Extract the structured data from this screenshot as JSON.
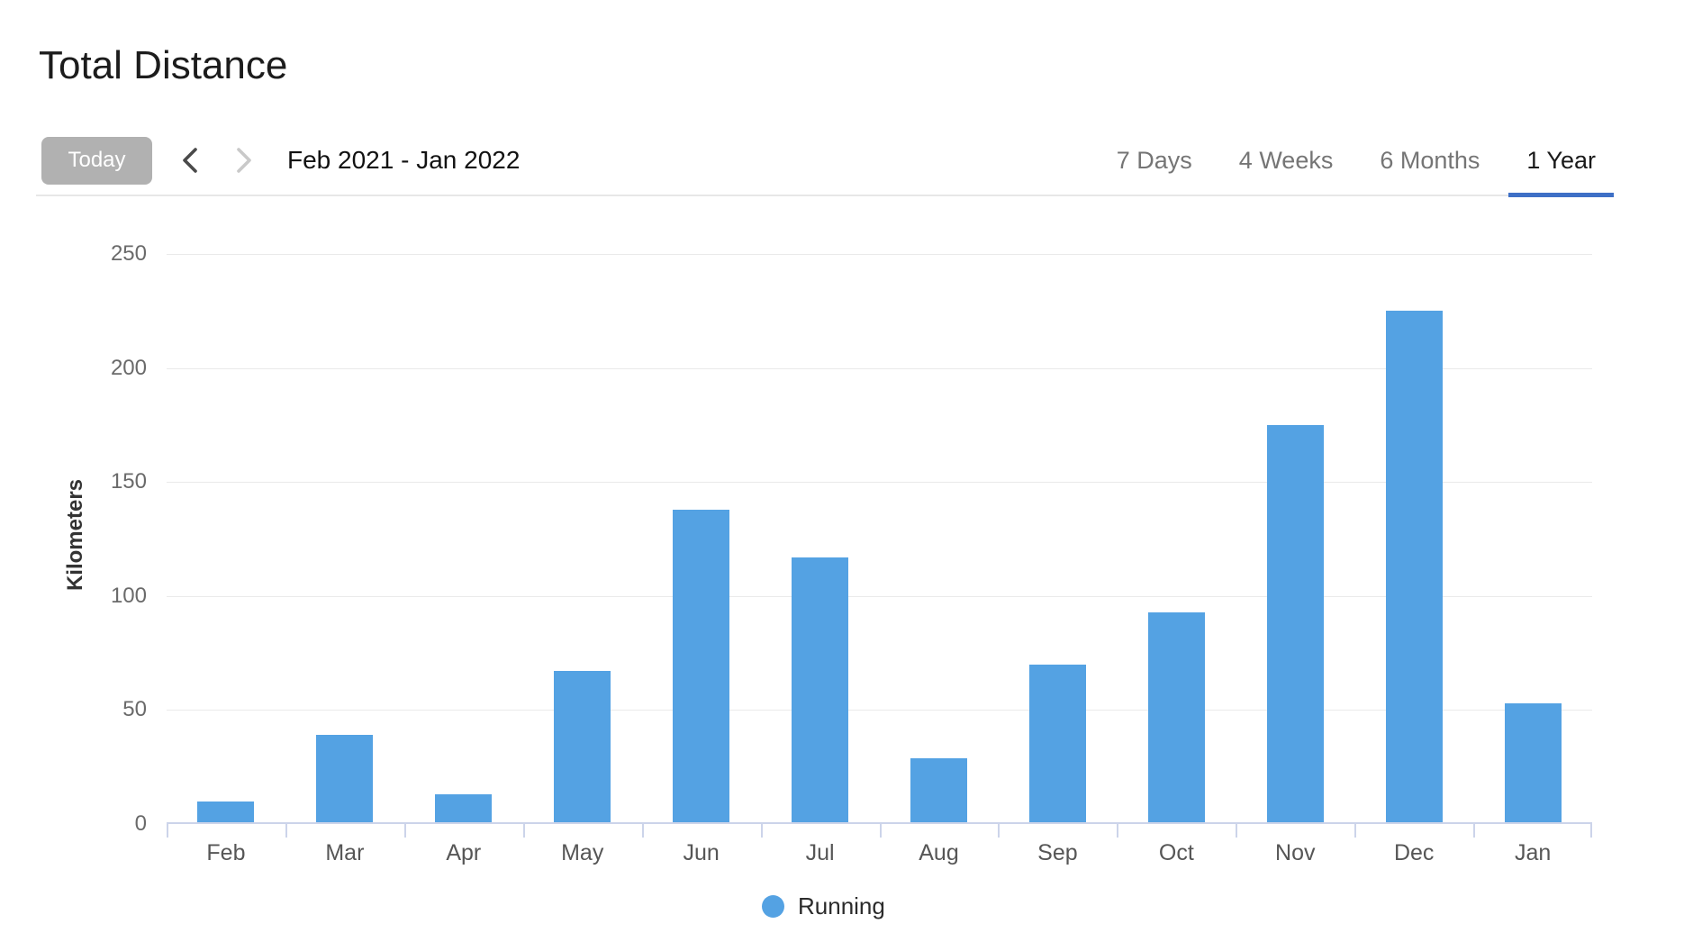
{
  "page": {
    "title": "Total Distance"
  },
  "toolbar": {
    "today_label": "Today",
    "prev_icon": "chevron-left-icon",
    "next_icon": "chevron-right-icon",
    "date_range": "Feb 2021 - Jan 2022",
    "tabs": [
      {
        "label": "7 Days",
        "active": false
      },
      {
        "label": "4 Weeks",
        "active": false
      },
      {
        "label": "6 Months",
        "active": false
      },
      {
        "label": "1 Year",
        "active": true
      }
    ]
  },
  "chart_data": {
    "type": "bar",
    "title": "Total Distance",
    "categories": [
      "Feb",
      "Mar",
      "Apr",
      "May",
      "Jun",
      "Jul",
      "Aug",
      "Sep",
      "Oct",
      "Nov",
      "Dec",
      "Jan"
    ],
    "series": [
      {
        "name": "Running",
        "color": "#54A2E3",
        "values": [
          10,
          39,
          13,
          67,
          138,
          117,
          29,
          70,
          93,
          175,
          225,
          53
        ]
      }
    ],
    "xlabel": "",
    "ylabel": "Kilometers",
    "yticks": [
      0,
      50,
      100,
      150,
      200,
      250
    ],
    "ylim": [
      0,
      250
    ],
    "grid": true,
    "legend_position": "bottom"
  },
  "colors": {
    "bar": "#54A2E3",
    "active_tab_underline": "#3E70C6",
    "today_button_bg": "#b1b1b1",
    "axis_line": "#ccd4ea",
    "gridline": "#eaeaea",
    "prev_arrow": "#4a4a4a",
    "next_arrow": "#c9c9c9"
  }
}
